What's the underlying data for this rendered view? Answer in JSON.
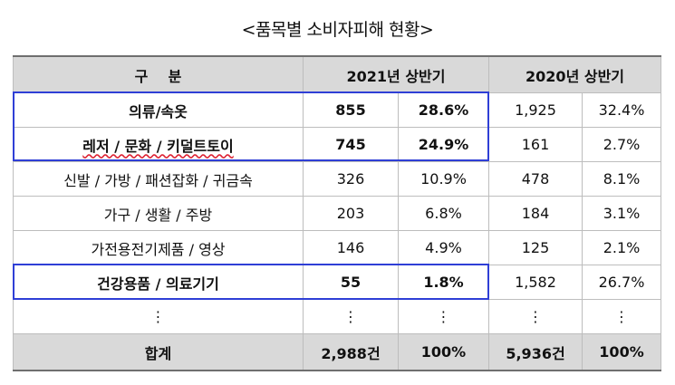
{
  "title": "<품목별 소비자피해 현황>",
  "header": {
    "category": "구    분",
    "col_2021": "2021년 상반기",
    "col_2020": "2020년 상반기"
  },
  "rows": [
    {
      "category": "의류/속옷",
      "v2021": "855",
      "p2021": "28.6%",
      "v2020": "1,925",
      "p2020": "32.4%",
      "highlight": true
    },
    {
      "category": "레저 / 문화 / 키덜트토이",
      "v2021": "745",
      "p2021": "24.9%",
      "v2020": "161",
      "p2020": "2.7%",
      "highlight": true
    },
    {
      "category": "신발 / 가방 / 패션잡화 / 귀금속",
      "v2021": "326",
      "p2021": "10.9%",
      "v2020": "478",
      "p2020": "8.1%",
      "highlight": false
    },
    {
      "category": "가구 / 생활 / 주방",
      "v2021": "203",
      "p2021": "6.8%",
      "v2020": "184",
      "p2020": "3.1%",
      "highlight": false
    },
    {
      "category": "가전용전기제품 / 영상",
      "v2021": "146",
      "p2021": "4.9%",
      "v2020": "125",
      "p2020": "2.1%",
      "highlight": false
    },
    {
      "category": "건강용품 / 의료기기",
      "v2021": "55",
      "p2021": "1.8%",
      "v2020": "1,582",
      "p2020": "26.7%",
      "highlight": true
    },
    {
      "category": "⋮",
      "v2021": "⋮",
      "p2021": "⋮",
      "v2020": "⋮",
      "p2020": "⋮",
      "highlight": false
    }
  ],
  "total": {
    "category": "합계",
    "v2021": "2,988건",
    "p2021": "100%",
    "v2020": "5,936건",
    "p2020": "100%"
  },
  "colors": {
    "highlight_border": "#2f3fd6",
    "header_bg": "#d9d9d9"
  }
}
